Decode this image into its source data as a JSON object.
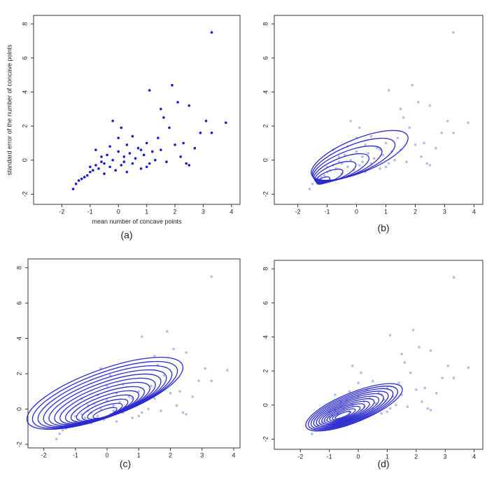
{
  "chart_data": [
    {
      "type": "scatter",
      "caption": "(a)",
      "x_label": "mean number of concave points",
      "y_label": "standard error of the number of concave points",
      "xlim": [
        -3,
        4.3
      ],
      "ylim": [
        -2.6,
        8.5
      ],
      "xticks": [
        -2,
        -1,
        0,
        1,
        2,
        3,
        4
      ],
      "yticks": [
        -2,
        0,
        2,
        4,
        6,
        8
      ],
      "series": [
        {
          "color": "#1a1ad0",
          "x": [
            -1.6,
            -1.5,
            -1.4,
            -1.3,
            -1.2,
            -1.1,
            -1.0,
            -1.0,
            -0.9,
            -0.8,
            -0.8,
            -0.7,
            -0.6,
            -0.5,
            -0.5,
            -0.4,
            -0.3,
            -0.2,
            -0.2,
            -0.1,
            0.0,
            0.0,
            0.1,
            0.1,
            0.2,
            0.3,
            0.3,
            0.4,
            0.5,
            0.5,
            0.6,
            0.7,
            0.8,
            0.9,
            1.0,
            1.1,
            1.1,
            1.2,
            1.3,
            1.4,
            1.5,
            1.5,
            1.6,
            1.7,
            1.8,
            1.9,
            2.0,
            2.1,
            2.2,
            2.3,
            2.4,
            2.5,
            2.5,
            2.7,
            2.9,
            3.1,
            3.3,
            3.3,
            3.8,
            -0.6,
            0.2,
            0.8,
            -0.3,
            1.0
          ],
          "values": [
            -1.7,
            -1.4,
            -1.2,
            -1.1,
            -1.0,
            -0.9,
            -0.7,
            -0.4,
            -0.6,
            -0.3,
            0.6,
            -0.5,
            0.2,
            -0.2,
            -0.8,
            0.3,
            -0.4,
            2.3,
            0.0,
            -0.6,
            0.5,
            1.3,
            -0.3,
            1.9,
            0.2,
            -0.7,
            0.9,
            0.4,
            1.4,
            -0.2,
            0.1,
            0.7,
            -0.5,
            0.3,
            1.0,
            4.1,
            -0.2,
            0.5,
            0.0,
            1.3,
            3.0,
            0.6,
            2.5,
            -0.1,
            1.9,
            4.4,
            0.9,
            3.4,
            0.2,
            1.0,
            -0.2,
            3.2,
            -0.3,
            0.7,
            1.6,
            2.3,
            7.5,
            1.6,
            2.2,
            -0.1,
            -0.1,
            0.6,
            0.8,
            -0.4
          ]
        }
      ]
    },
    {
      "type": "scatter",
      "caption": "(b)",
      "xlim": [
        -2.8,
        4.3
      ],
      "ylim": [
        -2.6,
        8.5
      ],
      "xticks": [
        -2,
        -1,
        0,
        1,
        2,
        3,
        4
      ],
      "yticks": [
        -2,
        0,
        2,
        4,
        6,
        8
      ],
      "series": [
        {
          "color": "#b8b8f0",
          "x": [
            -1.6,
            -1.5,
            -1.4,
            -1.3,
            -1.2,
            -1.1,
            -1.0,
            -1.0,
            -0.9,
            -0.8,
            -0.8,
            -0.7,
            -0.6,
            -0.5,
            -0.5,
            -0.4,
            -0.3,
            -0.2,
            -0.2,
            -0.1,
            0.0,
            0.0,
            0.1,
            0.1,
            0.2,
            0.3,
            0.3,
            0.4,
            0.5,
            0.5,
            0.6,
            0.7,
            0.8,
            0.9,
            1.0,
            1.1,
            1.1,
            1.2,
            1.3,
            1.4,
            1.5,
            1.5,
            1.6,
            1.7,
            1.8,
            1.9,
            2.0,
            2.1,
            2.2,
            2.3,
            2.4,
            2.5,
            2.5,
            2.7,
            2.9,
            3.1,
            3.3,
            3.3,
            3.8,
            -0.6,
            0.2,
            0.8,
            -0.3,
            1.0
          ],
          "values": [
            -1.7,
            -1.4,
            -1.2,
            -1.1,
            -1.0,
            -0.9,
            -0.7,
            -0.4,
            -0.6,
            -0.3,
            0.6,
            -0.5,
            0.2,
            -0.2,
            -0.8,
            0.3,
            -0.4,
            2.3,
            0.0,
            -0.6,
            0.5,
            1.3,
            -0.3,
            1.9,
            0.2,
            -0.7,
            0.9,
            0.4,
            1.4,
            -0.2,
            0.1,
            0.7,
            -0.5,
            0.3,
            1.0,
            4.1,
            -0.2,
            0.5,
            0.0,
            1.3,
            3.0,
            0.6,
            2.5,
            -0.1,
            1.9,
            4.4,
            0.9,
            3.4,
            0.2,
            1.0,
            -0.2,
            3.2,
            -0.3,
            0.7,
            1.6,
            2.3,
            7.5,
            1.6,
            2.2,
            -0.1,
            -0.1,
            0.6,
            0.8,
            -0.4
          ]
        }
      ]
    },
    {
      "type": "scatter",
      "caption": "(c)",
      "xlim": [
        -2.5,
        4.2
      ],
      "ylim": [
        -2.2,
        8.5
      ],
      "xticks": [
        -2,
        -1,
        0,
        1,
        2,
        3,
        4
      ],
      "yticks": [
        -2,
        0,
        2,
        4,
        6,
        8
      ],
      "series": [
        {
          "color": "#b8b8f0",
          "x": [
            -1.6,
            -1.5,
            -1.4,
            -1.3,
            -1.2,
            -1.1,
            -1.0,
            -1.0,
            -0.9,
            -0.8,
            -0.8,
            -0.7,
            -0.6,
            -0.5,
            -0.5,
            -0.4,
            -0.3,
            -0.2,
            -0.2,
            -0.1,
            0.0,
            0.0,
            0.1,
            0.1,
            0.2,
            0.3,
            0.3,
            0.4,
            0.5,
            0.5,
            0.6,
            0.7,
            0.8,
            0.9,
            1.0,
            1.1,
            1.1,
            1.2,
            1.3,
            1.4,
            1.5,
            1.5,
            1.6,
            1.7,
            1.8,
            1.9,
            2.0,
            2.1,
            2.2,
            2.3,
            2.4,
            2.5,
            2.5,
            2.7,
            2.9,
            3.1,
            3.3,
            3.3,
            3.8,
            -0.6,
            0.2,
            0.8,
            -0.3,
            1.0
          ],
          "values": [
            -1.7,
            -1.4,
            -1.2,
            -1.1,
            -1.0,
            -0.9,
            -0.7,
            -0.4,
            -0.6,
            -0.3,
            0.6,
            -0.5,
            0.2,
            -0.2,
            -0.8,
            0.3,
            -0.4,
            2.3,
            0.0,
            -0.6,
            0.5,
            1.3,
            -0.3,
            1.9,
            0.2,
            -0.7,
            0.9,
            0.4,
            1.4,
            -0.2,
            0.1,
            0.7,
            -0.5,
            0.3,
            1.0,
            4.1,
            -0.2,
            0.5,
            0.0,
            1.3,
            3.0,
            0.6,
            2.5,
            -0.1,
            1.9,
            4.4,
            0.9,
            3.4,
            0.2,
            1.0,
            -0.2,
            3.2,
            -0.3,
            0.7,
            1.6,
            2.3,
            7.5,
            1.6,
            2.2,
            -0.1,
            -0.1,
            0.6,
            0.8,
            -0.4
          ]
        }
      ]
    },
    {
      "type": "scatter",
      "caption": "(d)",
      "xlim": [
        -2.9,
        4.3
      ],
      "ylim": [
        -2.6,
        8.5
      ],
      "xticks": [
        -2,
        -1,
        0,
        1,
        2,
        3,
        4
      ],
      "yticks": [
        -2,
        0,
        2,
        4,
        6,
        8
      ],
      "series": [
        {
          "color": "#b8b8f0",
          "x": [
            -1.6,
            -1.5,
            -1.4,
            -1.3,
            -1.2,
            -1.1,
            -1.0,
            -1.0,
            -0.9,
            -0.8,
            -0.8,
            -0.7,
            -0.6,
            -0.5,
            -0.5,
            -0.4,
            -0.3,
            -0.2,
            -0.2,
            -0.1,
            0.0,
            0.0,
            0.1,
            0.1,
            0.2,
            0.3,
            0.3,
            0.4,
            0.5,
            0.5,
            0.6,
            0.7,
            0.8,
            0.9,
            1.0,
            1.1,
            1.1,
            1.2,
            1.3,
            1.4,
            1.5,
            1.5,
            1.6,
            1.7,
            1.8,
            1.9,
            2.0,
            2.1,
            2.2,
            2.3,
            2.4,
            2.5,
            2.5,
            2.7,
            2.9,
            3.1,
            3.3,
            3.3,
            3.8,
            -0.6,
            0.2,
            0.8,
            -0.3,
            1.0
          ],
          "values": [
            -1.7,
            -1.4,
            -1.2,
            -1.1,
            -1.0,
            -0.9,
            -0.7,
            -0.4,
            -0.6,
            -0.3,
            0.6,
            -0.5,
            0.2,
            -0.2,
            -0.8,
            0.3,
            -0.4,
            2.3,
            0.0,
            -0.6,
            0.5,
            1.3,
            -0.3,
            1.9,
            0.2,
            -0.7,
            0.9,
            0.4,
            1.4,
            -0.2,
            0.1,
            0.7,
            -0.5,
            0.3,
            1.0,
            4.1,
            -0.2,
            0.5,
            0.0,
            1.3,
            3.0,
            0.6,
            2.5,
            -0.1,
            1.9,
            4.4,
            0.9,
            3.4,
            0.2,
            1.0,
            -0.2,
            3.2,
            -0.3,
            0.7,
            1.6,
            2.3,
            7.5,
            1.6,
            2.2,
            -0.1,
            -0.1,
            0.6,
            0.8,
            -0.4
          ]
        }
      ]
    }
  ]
}
